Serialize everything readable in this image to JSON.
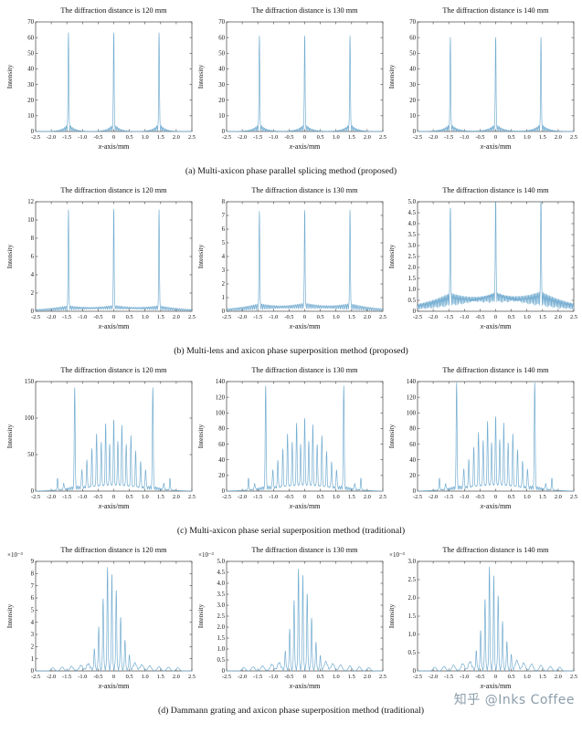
{
  "chart_data": {
    "type": "line",
    "xlabel": "x-axis/mm",
    "xlabel_italic": "x",
    "xlabel_rest": "-axis/mm",
    "ylabel": "Intensity",
    "xlim": [
      -2.5,
      2.5
    ],
    "xtick_step": 0.5,
    "grid": false,
    "legend": "none",
    "line_color": "#74add1",
    "rows": [
      {
        "caption": "(a) Multi-axicon phase parallel splicing method (proposed)",
        "panels": [
          {
            "title": "The diffraction distance is 120 mm",
            "ylim": [
              0,
              70
            ],
            "ytick_step": 10,
            "ytick_decimals": 0,
            "peak_width": 0.016,
            "peaks": [
              [
                -1.45,
                63
              ],
              [
                0,
                63
              ],
              [
                1.45,
                63
              ]
            ],
            "sidelobe": {
              "amp": 0.09,
              "spread": 0.16,
              "freq": 65
            }
          },
          {
            "title": "The diffraction distance is 130 mm",
            "ylim": [
              0,
              70
            ],
            "ytick_step": 10,
            "ytick_decimals": 0,
            "peak_width": 0.016,
            "peaks": [
              [
                -1.45,
                61
              ],
              [
                0,
                61
              ],
              [
                1.45,
                61
              ]
            ],
            "sidelobe": {
              "amp": 0.09,
              "spread": 0.18,
              "freq": 65
            }
          },
          {
            "title": "The diffraction distance is 140 mm",
            "ylim": [
              0,
              70
            ],
            "ytick_step": 10,
            "ytick_decimals": 0,
            "peak_width": 0.016,
            "peaks": [
              [
                -1.45,
                60
              ],
              [
                0,
                60
              ],
              [
                1.45,
                60
              ]
            ],
            "sidelobe": {
              "amp": 0.09,
              "spread": 0.2,
              "freq": 65
            }
          }
        ]
      },
      {
        "caption": "(b) Multi-lens and axicon phase superposition method (proposed)",
        "panels": [
          {
            "title": "The diffraction distance is 120 mm",
            "ylim": [
              0,
              12
            ],
            "ytick_step": 2,
            "ytick_decimals": 0,
            "peak_width": 0.016,
            "peaks": [
              [
                -1.45,
                11
              ],
              [
                0,
                11
              ],
              [
                1.45,
                11
              ]
            ],
            "sidelobe": {
              "amp": 0.05,
              "spread": 0.9,
              "freq": 60
            }
          },
          {
            "title": "The diffraction distance is 130 mm",
            "ylim": [
              0,
              8
            ],
            "ytick_step": 1,
            "ytick_decimals": 0,
            "peak_width": 0.016,
            "peaks": [
              [
                -1.45,
                7.2
              ],
              [
                0,
                7.2
              ],
              [
                1.45,
                7.3
              ]
            ],
            "sidelobe": {
              "amp": 0.07,
              "spread": 0.9,
              "freq": 60
            }
          },
          {
            "title": "The diffraction distance is 140 mm",
            "ylim": [
              0,
              5
            ],
            "ytick_step": 0.5,
            "ytick_decimals": 1,
            "peak_width": 0.016,
            "peaks": [
              [
                -1.45,
                4.5
              ],
              [
                0,
                4.6
              ],
              [
                1.45,
                4.95
              ]
            ],
            "sidelobe": {
              "amp": 0.16,
              "spread": 1.1,
              "freq": 75
            }
          }
        ]
      },
      {
        "caption": "(c) Multi-axicon phase serial superposition method (traditional)",
        "panels": [
          {
            "title": "The diffraction distance is 120 mm",
            "ylim": [
              0,
              150
            ],
            "ytick_step": 50,
            "ytick_decimals": 0,
            "peak_width": 0.02,
            "peaks": [
              [
                -1.8,
                16
              ],
              [
                -1.6,
                9
              ],
              [
                -1.25,
                140
              ],
              [
                -1.02,
                26
              ],
              [
                -0.86,
                38
              ],
              [
                -0.7,
                52
              ],
              [
                -0.55,
                72
              ],
              [
                -0.4,
                60
              ],
              [
                -0.26,
                85
              ],
              [
                -0.13,
                56
              ],
              [
                0,
                90
              ],
              [
                0.13,
                60
              ],
              [
                0.26,
                83
              ],
              [
                0.4,
                57
              ],
              [
                0.55,
                70
              ],
              [
                0.7,
                49
              ],
              [
                0.86,
                36
              ],
              [
                1.02,
                26
              ],
              [
                1.25,
                140
              ],
              [
                1.6,
                9
              ],
              [
                1.8,
                16
              ]
            ],
            "sidelobe": {
              "amp": 0.04,
              "spread": 0.35,
              "freq": 55
            }
          },
          {
            "title": "The diffraction distance is 130 mm",
            "ylim": [
              0,
              140
            ],
            "ytick_step": 20,
            "ytick_decimals": 0,
            "peak_width": 0.02,
            "peaks": [
              [
                -1.8,
                15
              ],
              [
                -1.6,
                8
              ],
              [
                -1.25,
                133
              ],
              [
                -1.02,
                24
              ],
              [
                -0.86,
                35
              ],
              [
                -0.7,
                48
              ],
              [
                -0.55,
                67
              ],
              [
                -0.4,
                56
              ],
              [
                -0.26,
                80
              ],
              [
                -0.13,
                52
              ],
              [
                0,
                86
              ],
              [
                0.13,
                56
              ],
              [
                0.26,
                78
              ],
              [
                0.4,
                53
              ],
              [
                0.55,
                65
              ],
              [
                0.7,
                45
              ],
              [
                0.86,
                33
              ],
              [
                1.02,
                24
              ],
              [
                1.25,
                133
              ],
              [
                1.6,
                8
              ],
              [
                1.8,
                15
              ]
            ],
            "sidelobe": {
              "amp": 0.04,
              "spread": 0.35,
              "freq": 55
            }
          },
          {
            "title": "The diffraction distance is 140 mm",
            "ylim": [
              0,
              140
            ],
            "ytick_step": 20,
            "ytick_decimals": 0,
            "peak_width": 0.02,
            "peaks": [
              [
                -1.8,
                15
              ],
              [
                -1.6,
                8
              ],
              [
                -1.25,
                137
              ],
              [
                -1.02,
                25
              ],
              [
                -0.86,
                36
              ],
              [
                -0.7,
                50
              ],
              [
                -0.55,
                69
              ],
              [
                -0.4,
                58
              ],
              [
                -0.26,
                82
              ],
              [
                -0.13,
                54
              ],
              [
                0,
                88
              ],
              [
                0.13,
                58
              ],
              [
                0.26,
                80
              ],
              [
                0.4,
                55
              ],
              [
                0.55,
                67
              ],
              [
                0.7,
                47
              ],
              [
                0.86,
                34
              ],
              [
                1.02,
                25
              ],
              [
                1.25,
                137
              ],
              [
                1.6,
                8
              ],
              [
                1.8,
                15
              ]
            ],
            "sidelobe": {
              "amp": 0.04,
              "spread": 0.35,
              "freq": 55
            }
          }
        ]
      },
      {
        "caption": "(d) Dammann grating and axicon phase superposition method (traditional)",
        "panels": [
          {
            "title": "The diffraction distance is 120 mm",
            "scale_label": "×10⁻³",
            "ylim": [
              0,
              9
            ],
            "ytick_step": 1,
            "ytick_decimals": 0,
            "peak_width": 0.02,
            "bump_width": 0.07,
            "peaks": [
              [
                -0.62,
                1.8
              ],
              [
                -0.48,
                3.6
              ],
              [
                -0.34,
                5.9
              ],
              [
                -0.2,
                8.5
              ],
              [
                -0.06,
                7.9
              ],
              [
                0.08,
                6.6
              ],
              [
                0.22,
                4.4
              ],
              [
                0.36,
                2.5
              ],
              [
                0.5,
                1.3
              ]
            ],
            "bumps": [
              [
                -1.95,
                0.25
              ],
              [
                -1.65,
                0.3
              ],
              [
                -1.35,
                0.34
              ],
              [
                -1.05,
                0.4
              ],
              [
                -0.82,
                0.48
              ],
              [
                0.68,
                0.55
              ],
              [
                0.9,
                0.45
              ],
              [
                1.15,
                0.4
              ],
              [
                1.45,
                0.34
              ],
              [
                1.75,
                0.3
              ],
              [
                2.05,
                0.25
              ]
            ],
            "sidelobe": {
              "amp": 0.02,
              "spread": 0.4,
              "freq": 45
            }
          },
          {
            "title": "The diffraction distance is 130 mm",
            "scale_label": "×10⁻³",
            "ylim": [
              0,
              5
            ],
            "ytick_step": 0.5,
            "ytick_decimals": 1,
            "peak_width": 0.02,
            "bump_width": 0.07,
            "peaks": [
              [
                -0.62,
                0.9
              ],
              [
                -0.48,
                1.9
              ],
              [
                -0.34,
                3.2
              ],
              [
                -0.2,
                4.65
              ],
              [
                -0.06,
                4.35
              ],
              [
                0.08,
                3.5
              ],
              [
                0.22,
                2.4
              ],
              [
                0.36,
                1.3
              ],
              [
                0.5,
                0.7
              ]
            ],
            "bumps": [
              [
                -1.95,
                0.15
              ],
              [
                -1.65,
                0.18
              ],
              [
                -1.35,
                0.22
              ],
              [
                -1.05,
                0.27
              ],
              [
                -0.82,
                0.32
              ],
              [
                0.68,
                0.36
              ],
              [
                0.9,
                0.3
              ],
              [
                1.15,
                0.26
              ],
              [
                1.45,
                0.22
              ],
              [
                1.75,
                0.18
              ],
              [
                2.05,
                0.15
              ]
            ],
            "sidelobe": {
              "amp": 0.02,
              "spread": 0.4,
              "freq": 45
            }
          },
          {
            "title": "The diffraction distance is 140 mm",
            "scale_label": "×10⁻³",
            "ylim": [
              0,
              3
            ],
            "ytick_step": 0.5,
            "ytick_decimals": 1,
            "peak_width": 0.02,
            "bump_width": 0.07,
            "peaks": [
              [
                -0.62,
                0.55
              ],
              [
                -0.48,
                1.1
              ],
              [
                -0.34,
                1.95
              ],
              [
                -0.2,
                2.85
              ],
              [
                -0.06,
                2.6
              ],
              [
                0.08,
                2.05
              ],
              [
                0.22,
                1.35
              ],
              [
                0.36,
                0.8
              ],
              [
                0.5,
                0.45
              ]
            ],
            "bumps": [
              [
                -1.95,
                0.1
              ],
              [
                -1.65,
                0.12
              ],
              [
                -1.35,
                0.15
              ],
              [
                -1.05,
                0.18
              ],
              [
                -0.82,
                0.22
              ],
              [
                0.68,
                0.25
              ],
              [
                0.9,
                0.2
              ],
              [
                1.15,
                0.18
              ],
              [
                1.45,
                0.15
              ],
              [
                1.75,
                0.12
              ],
              [
                2.05,
                0.1
              ]
            ],
            "sidelobe": {
              "amp": 0.02,
              "spread": 0.4,
              "freq": 45
            }
          }
        ]
      }
    ]
  },
  "watermark": {
    "text": "知乎 @Inks Coffee"
  }
}
